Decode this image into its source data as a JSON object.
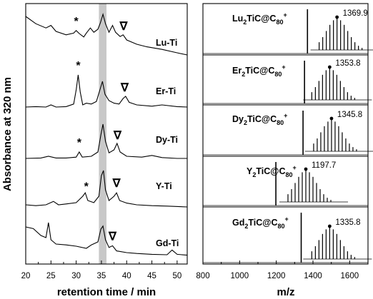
{
  "chart_data": [
    {
      "type": "line",
      "panel": "hplc",
      "xlabel": "retention time / min",
      "ylabel": "Absorbance at 320 nm",
      "xlim": [
        20,
        52
      ],
      "x_ticks": [
        20,
        25,
        30,
        35,
        40,
        45,
        50
      ],
      "highlight_band": {
        "x_from": 34.5,
        "x_to": 36.0,
        "color": "#c8c8c8"
      },
      "series": [
        {
          "name": "Lu-Ti",
          "offset": 4,
          "points": [
            [
              20,
              0.95
            ],
            [
              22,
              0.78
            ],
            [
              24,
              0.68
            ],
            [
              25,
              0.74
            ],
            [
              26,
              0.6
            ],
            [
              28,
              0.52
            ],
            [
              29.5,
              0.56
            ],
            [
              30,
              0.62
            ],
            [
              30.6,
              0.55
            ],
            [
              31.5,
              0.47
            ],
            [
              32,
              0.56
            ],
            [
              32.8,
              0.68
            ],
            [
              33.5,
              0.58
            ],
            [
              34.3,
              0.65
            ],
            [
              34.8,
              0.8
            ],
            [
              35.3,
              1.0
            ],
            [
              35.8,
              0.78
            ],
            [
              36.5,
              0.58
            ],
            [
              37.2,
              0.74
            ],
            [
              37.8,
              0.58
            ],
            [
              38.7,
              0.48
            ],
            [
              39.3,
              0.52
            ],
            [
              40,
              0.4
            ],
            [
              42,
              0.3
            ],
            [
              44,
              0.24
            ],
            [
              47,
              0.18
            ],
            [
              50,
              0.1
            ],
            [
              52,
              0.05
            ]
          ],
          "markers": [
            {
              "symbol": "*",
              "x": 30.0
            },
            {
              "symbol": "∇",
              "x": 39.4
            }
          ]
        },
        {
          "name": "Er-Ti",
          "offset": 3,
          "points": [
            [
              20,
              0.05
            ],
            [
              22,
              0.06
            ],
            [
              24,
              0.05
            ],
            [
              25,
              0.1
            ],
            [
              26,
              0.05
            ],
            [
              28,
              0.06
            ],
            [
              29.5,
              0.12
            ],
            [
              30,
              0.45
            ],
            [
              30.4,
              0.8
            ],
            [
              30.8,
              0.4
            ],
            [
              31.3,
              0.1
            ],
            [
              32,
              0.14
            ],
            [
              33,
              0.12
            ],
            [
              34,
              0.18
            ],
            [
              34.7,
              0.45
            ],
            [
              35.2,
              0.65
            ],
            [
              35.7,
              0.35
            ],
            [
              36.5,
              0.2
            ],
            [
              37.5,
              0.14
            ],
            [
              38.5,
              0.12
            ],
            [
              39.3,
              0.25
            ],
            [
              39.8,
              0.3
            ],
            [
              40.5,
              0.16
            ],
            [
              42,
              0.1
            ],
            [
              45,
              0.07
            ],
            [
              47,
              0.1
            ],
            [
              50,
              0.06
            ],
            [
              52,
              0.05
            ]
          ],
          "markers": [
            {
              "symbol": "*",
              "x": 30.4
            },
            {
              "symbol": "∇",
              "x": 39.6
            }
          ]
        },
        {
          "name": "Dy-Ti",
          "offset": 2,
          "points": [
            [
              20,
              0.05
            ],
            [
              23,
              0.06
            ],
            [
              24.5,
              0.1
            ],
            [
              26,
              0.06
            ],
            [
              28,
              0.06
            ],
            [
              30,
              0.08
            ],
            [
              30.6,
              0.2
            ],
            [
              31.2,
              0.08
            ],
            [
              33,
              0.1
            ],
            [
              34.3,
              0.2
            ],
            [
              34.9,
              0.6
            ],
            [
              35.3,
              0.85
            ],
            [
              35.8,
              0.45
            ],
            [
              36.5,
              0.18
            ],
            [
              37.5,
              0.25
            ],
            [
              38.1,
              0.4
            ],
            [
              38.7,
              0.2
            ],
            [
              40,
              0.1
            ],
            [
              43,
              0.08
            ],
            [
              45,
              0.12
            ],
            [
              47,
              0.07
            ],
            [
              50,
              0.05
            ],
            [
              52,
              0.05
            ]
          ],
          "markers": [
            {
              "symbol": "*",
              "x": 30.6
            },
            {
              "symbol": "∇",
              "x": 38.2
            }
          ]
        },
        {
          "name": "Y-Ti",
          "offset": 1,
          "points": [
            [
              20,
              0.1
            ],
            [
              22,
              0.08
            ],
            [
              24,
              0.1
            ],
            [
              25.5,
              0.18
            ],
            [
              26.5,
              0.1
            ],
            [
              28,
              0.12
            ],
            [
              30,
              0.15
            ],
            [
              31.3,
              0.3
            ],
            [
              31.8,
              0.38
            ],
            [
              32.3,
              0.2
            ],
            [
              33.5,
              0.15
            ],
            [
              34.5,
              0.3
            ],
            [
              35,
              0.78
            ],
            [
              35.4,
              0.9
            ],
            [
              35.8,
              0.45
            ],
            [
              36.5,
              0.2
            ],
            [
              37.5,
              0.3
            ],
            [
              38,
              0.38
            ],
            [
              38.6,
              0.2
            ],
            [
              40,
              0.14
            ],
            [
              42,
              0.1
            ],
            [
              45,
              0.08
            ],
            [
              48,
              0.07
            ],
            [
              52,
              0.05
            ]
          ],
          "markers": [
            {
              "symbol": "*",
              "x": 32.0
            },
            {
              "symbol": "∇",
              "x": 38.0
            }
          ]
        },
        {
          "name": "Gd-Ti",
          "offset": 0,
          "points": [
            [
              20,
              0.7
            ],
            [
              21.5,
              0.66
            ],
            [
              23,
              0.5
            ],
            [
              24,
              0.45
            ],
            [
              24.5,
              0.8
            ],
            [
              25,
              0.4
            ],
            [
              26,
              0.3
            ],
            [
              28,
              0.28
            ],
            [
              30,
              0.25
            ],
            [
              32,
              0.2
            ],
            [
              33,
              0.28
            ],
            [
              34.3,
              0.35
            ],
            [
              34.9,
              0.65
            ],
            [
              35.3,
              0.72
            ],
            [
              35.8,
              0.4
            ],
            [
              36.5,
              0.22
            ],
            [
              37.2,
              0.26
            ],
            [
              38,
              0.14
            ],
            [
              40,
              0.1
            ],
            [
              42,
              0.08
            ],
            [
              45,
              0.06
            ],
            [
              48,
              0.05
            ],
            [
              49,
              0.16
            ],
            [
              50,
              0.06
            ],
            [
              52,
              0.04
            ]
          ],
          "markers": [
            {
              "symbol": "∇",
              "x": 37.2
            }
          ]
        }
      ],
      "labels": [
        "Lu-Ti",
        "Er-Ti",
        "Dy-Ti",
        "Y-Ti",
        "Gd-Ti"
      ]
    },
    {
      "type": "bar",
      "panel": "mass-spectra",
      "xlabel": "m/z",
      "xlim": [
        800,
        1700
      ],
      "x_ticks": [
        800,
        1000,
        1200,
        1400,
        1600
      ],
      "spectra": [
        {
          "label_main": "Lu",
          "sub1": "2",
          "label_mid": "TiC@C",
          "sub2": "80",
          "sup": "+",
          "peak_mz": 1369.9,
          "peak_label": "1369.9",
          "inset_center": 1570,
          "inset_offset_mz": 0
        },
        {
          "label_main": "Er",
          "sub1": "2",
          "label_mid": "TiC@C",
          "sub2": "80",
          "sup": "+",
          "peak_mz": 1353.8,
          "peak_label": "1353.8",
          "inset_center": 1530,
          "inset_offset_mz": 0
        },
        {
          "label_main": "Dy",
          "sub1": "2",
          "label_mid": "TiC@C",
          "sub2": "80",
          "sup": "+",
          "peak_mz": 1345.8,
          "peak_label": "1345.8",
          "inset_center": 1540,
          "inset_offset_mz": 0
        },
        {
          "label_main": "Y",
          "sub1": "2",
          "label_mid": "TiC@C",
          "sub2": "80",
          "sup": "+",
          "peak_mz": 1197.7,
          "peak_label": "1197.7",
          "inset_center": 1400,
          "inset_offset_mz": 0
        },
        {
          "label_main": "Gd",
          "sub1": "2",
          "label_mid": "TiC@C",
          "sub2": "80",
          "sup": "+",
          "peak_mz": 1335.8,
          "peak_label": "1335.8",
          "inset_center": 1530,
          "inset_offset_mz": 0
        }
      ]
    }
  ]
}
